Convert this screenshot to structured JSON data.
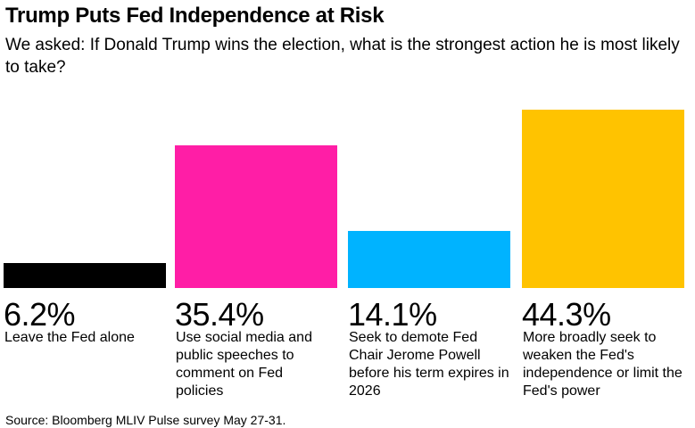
{
  "title": "Trump Puts Fed Independence at Risk",
  "subtitle": "We asked: If Donald Trump wins the election, what is the strongest action he is most likely to take?",
  "source": "Source: Bloomberg MLIV Pulse survey May 27-31.",
  "chart_data": {
    "type": "bar",
    "title": "Trump Puts Fed Independence at Risk",
    "subtitle": "We asked: If Donald Trump wins the election, what is the strongest action he is most likely to take?",
    "categories": [
      "Leave the Fed alone",
      "Use social media and public speeches to comment on Fed policies",
      "Seek to demote Fed Chair Jerome Powell before his term expires in 2026",
      "More broadly seek to weaken the Fed's independence or limit the Fed's power"
    ],
    "values": [
      6.2,
      35.4,
      14.1,
      44.3
    ],
    "value_labels": [
      "6.2%",
      "35.4%",
      "14.1%",
      "44.3%"
    ],
    "colors": [
      "#000000",
      "#ff1ea6",
      "#00b3ff",
      "#ffc300"
    ],
    "unit": "%",
    "ylim": [
      0,
      44.3
    ],
    "xlabel": "",
    "ylabel": "",
    "grid": false,
    "legend": "none"
  }
}
